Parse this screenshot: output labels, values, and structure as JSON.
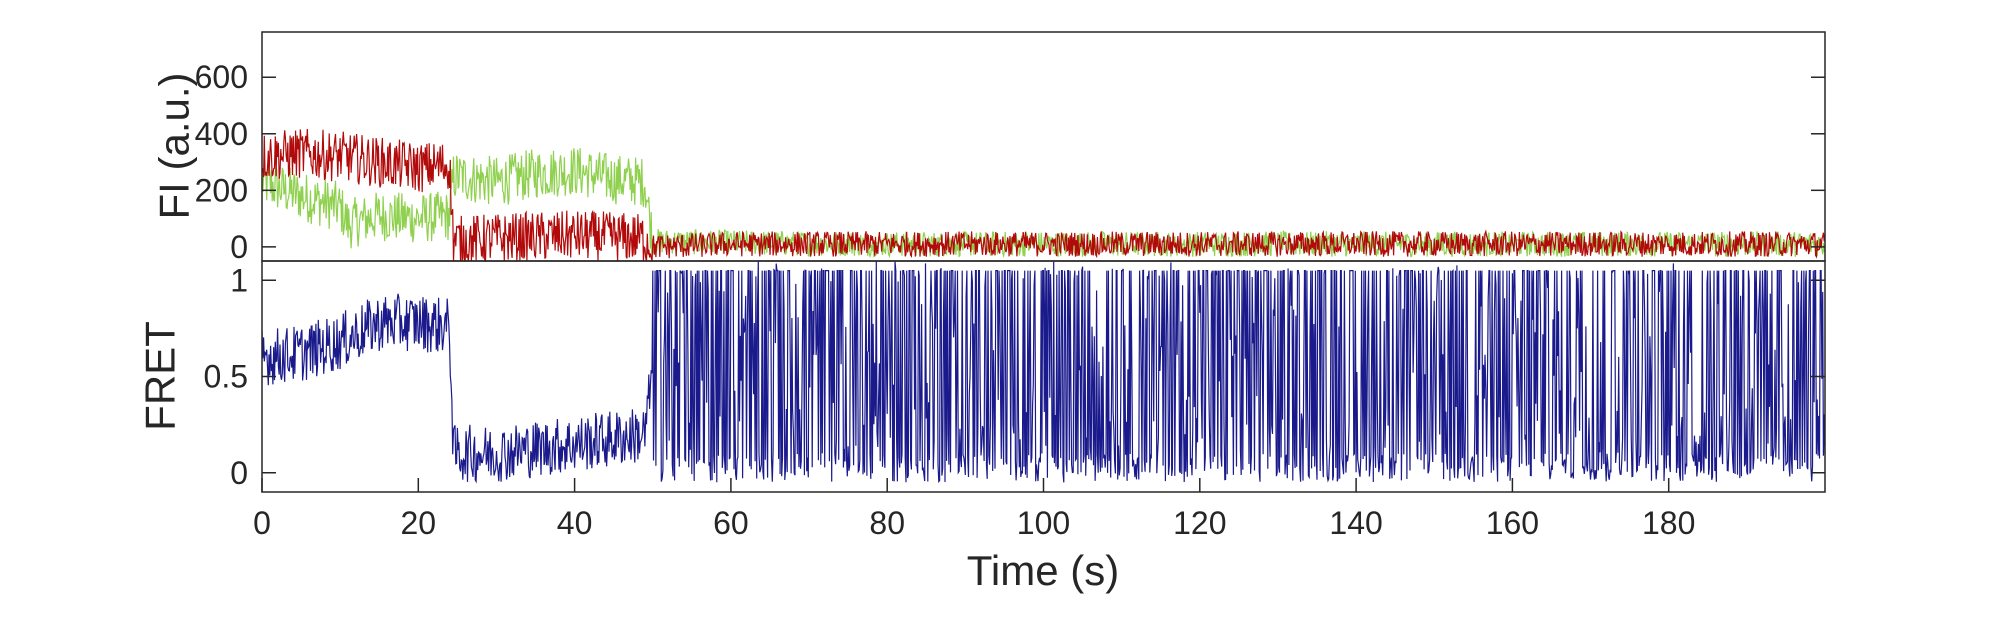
{
  "chart_data": [
    {
      "type": "line",
      "ylabel": "FI (a.u.)",
      "xlabel": "",
      "xlim": [
        0,
        200
      ],
      "ylim": [
        -50,
        760
      ],
      "y_ticks": [
        0,
        200,
        400,
        600
      ],
      "grid": false,
      "series": [
        {
          "color": "#8fd14f",
          "x": [
            0,
            5,
            10,
            11,
            15,
            20,
            24,
            24.5,
            30,
            35,
            40,
            45,
            49,
            50,
            60,
            80,
            100,
            120,
            140,
            160,
            180,
            200
          ],
          "values": [
            230,
            180,
            140,
            80,
            110,
            100,
            110,
            250,
            230,
            260,
            270,
            240,
            230,
            20,
            15,
            10,
            10,
            10,
            10,
            10,
            10,
            10
          ]
        },
        {
          "color": "#b20a0a",
          "x": [
            0,
            5,
            10,
            15,
            20,
            24,
            24.5,
            30,
            40,
            49,
            50,
            60,
            80,
            100,
            120,
            140,
            160,
            180,
            200
          ],
          "values": [
            320,
            330,
            320,
            300,
            280,
            290,
            20,
            30,
            40,
            30,
            0,
            10,
            10,
            10,
            10,
            10,
            10,
            10,
            10
          ]
        }
      ]
    },
    {
      "type": "line",
      "ylabel": "FRET",
      "xlabel": "Time (s)",
      "xlim": [
        0,
        200
      ],
      "ylim": [
        -0.1,
        1.1
      ],
      "x_ticks": [
        0,
        20,
        40,
        60,
        80,
        100,
        120,
        140,
        160,
        180
      ],
      "y_ticks": [
        0,
        0.5,
        1
      ],
      "y_tick_labels": [
        "0",
        "0.5",
        "1"
      ],
      "grid": false,
      "series": [
        {
          "color": "#1a1a8c",
          "x": [
            0,
            5,
            10,
            15,
            20,
            24,
            24.5,
            30,
            40,
            49,
            50,
            60,
            80,
            100,
            120,
            140,
            160,
            180,
            200
          ],
          "values": [
            0.6,
            0.62,
            0.68,
            0.78,
            0.78,
            0.76,
            0.1,
            0.1,
            0.15,
            0.2,
            0.55,
            0.55,
            0.55,
            0.55,
            0.55,
            0.55,
            0.55,
            0.55,
            0.55
          ]
        }
      ]
    }
  ]
}
